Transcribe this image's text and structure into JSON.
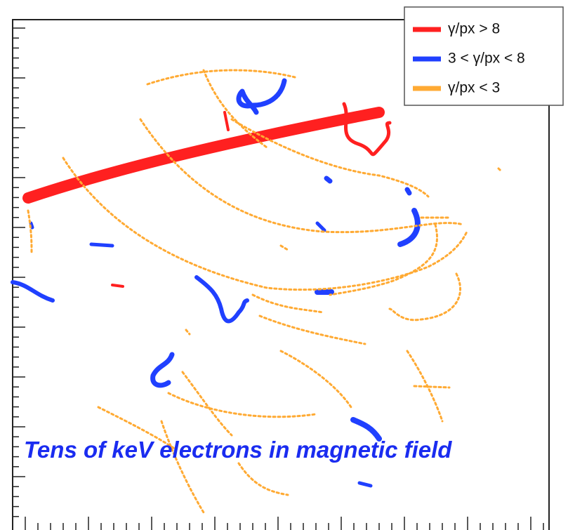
{
  "legend": {
    "entries": [
      {
        "label": "γ/px > 8",
        "color": "#ff2020"
      },
      {
        "label": "3 < γ/px < 8",
        "color": "#2040ff"
      },
      {
        "label": "γ/px < 3",
        "color": "#ffaa33"
      }
    ]
  },
  "annotation": "Tens of keV electrons in magnetic field"
}
